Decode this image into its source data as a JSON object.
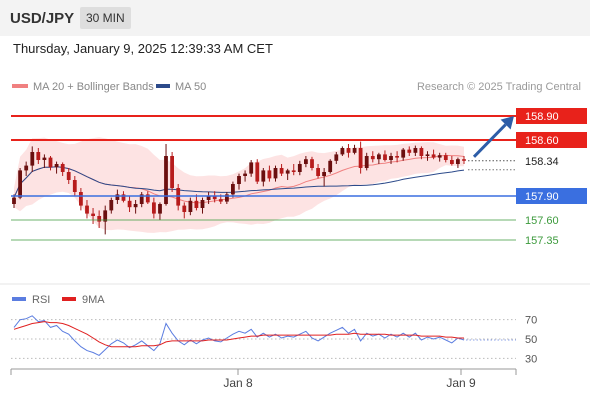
{
  "header": {
    "pair": "USD/JPY",
    "timeframe": "30 MIN"
  },
  "datetime": "Thursday, January 9, 2025 12:39:33 AM CET",
  "legend": {
    "ma20": "MA 20 + Bollinger Bands",
    "ma50": "MA 50",
    "credit": "Research © 2025 Trading Central",
    "rsi": "RSI",
    "ma9": "9MA"
  },
  "colors": {
    "ma20": "#f08080",
    "band": "#fde3e3",
    "ma50": "#2c4a8a",
    "resistance": "#e8221b",
    "support": "#3a6fe0",
    "target": "#3c9a3c",
    "bull": "#6b0f0f",
    "bear": "#b71c1c",
    "arrow": "#2d5da8"
  },
  "chart_data": [
    {
      "type": "candlestick",
      "ylim": [
        156.8,
        159.15
      ],
      "x_ticks": [
        "Jan 8",
        "Jan 9"
      ],
      "current_price": 158.34,
      "levels": [
        {
          "value": 158.9,
          "label": "158.90",
          "kind": "resistance"
        },
        {
          "value": 158.6,
          "label": "158.60",
          "kind": "resistance"
        },
        {
          "value": 158.34,
          "label": "158.34",
          "kind": "current"
        },
        {
          "value": 157.9,
          "label": "157.90",
          "kind": "pivot"
        },
        {
          "value": 157.6,
          "label": "157.60",
          "kind": "support"
        },
        {
          "value": 157.35,
          "label": "157.35",
          "kind": "support"
        }
      ],
      "forecast_arrow": {
        "from": 158.34,
        "to": 158.9
      },
      "candles": [
        [
          157.8,
          157.92,
          157.75,
          157.88
        ],
        [
          157.88,
          158.25,
          157.86,
          158.22
        ],
        [
          158.22,
          158.33,
          158.15,
          158.28
        ],
        [
          158.28,
          158.52,
          158.2,
          158.45
        ],
        [
          158.45,
          158.5,
          158.3,
          158.35
        ],
        [
          158.35,
          158.42,
          158.25,
          158.38
        ],
        [
          158.38,
          158.4,
          158.22,
          158.26
        ],
        [
          158.26,
          158.33,
          158.18,
          158.3
        ],
        [
          158.3,
          158.32,
          158.15,
          158.2
        ],
        [
          158.2,
          158.25,
          158.05,
          158.1
        ],
        [
          158.1,
          158.15,
          157.9,
          157.95
        ],
        [
          157.95,
          158.0,
          157.72,
          157.78
        ],
        [
          157.78,
          157.85,
          157.62,
          157.68
        ],
        [
          157.68,
          157.75,
          157.55,
          157.65
        ],
        [
          157.65,
          157.72,
          157.5,
          157.58
        ],
        [
          157.58,
          157.78,
          157.42,
          157.72
        ],
        [
          157.72,
          157.88,
          157.68,
          157.85
        ],
        [
          157.85,
          157.98,
          157.8,
          157.92
        ],
        [
          157.92,
          157.96,
          157.82,
          157.84
        ],
        [
          157.84,
          157.9,
          157.7,
          157.76
        ],
        [
          157.76,
          157.85,
          157.68,
          157.8
        ],
        [
          157.8,
          157.95,
          157.76,
          157.92
        ],
        [
          157.92,
          157.96,
          157.8,
          157.82
        ],
        [
          157.82,
          157.88,
          157.62,
          157.68
        ],
        [
          157.68,
          157.82,
          157.6,
          157.8
        ],
        [
          157.8,
          158.55,
          157.78,
          158.4
        ],
        [
          158.4,
          158.45,
          157.95,
          158.0
        ],
        [
          158.0,
          158.05,
          157.72,
          157.78
        ],
        [
          157.78,
          157.82,
          157.62,
          157.7
        ],
        [
          157.7,
          157.88,
          157.66,
          157.84
        ],
        [
          157.84,
          157.92,
          157.72,
          157.75
        ],
        [
          157.75,
          157.88,
          157.68,
          157.85
        ],
        [
          157.85,
          157.95,
          157.8,
          157.9
        ],
        [
          157.9,
          157.96,
          157.82,
          157.86
        ],
        [
          157.86,
          157.92,
          157.8,
          157.83
        ],
        [
          157.83,
          157.95,
          157.8,
          157.92
        ],
        [
          157.92,
          158.08,
          157.88,
          158.05
        ],
        [
          158.05,
          158.18,
          157.98,
          158.15
        ],
        [
          158.15,
          158.22,
          158.08,
          158.18
        ],
        [
          158.18,
          158.35,
          158.14,
          158.32
        ],
        [
          158.32,
          158.36,
          158.05,
          158.08
        ],
        [
          158.08,
          158.25,
          158.02,
          158.22
        ],
        [
          158.22,
          158.28,
          158.08,
          158.12
        ],
        [
          158.12,
          158.28,
          158.08,
          158.25
        ],
        [
          158.25,
          158.3,
          158.15,
          158.18
        ],
        [
          158.18,
          158.24,
          158.1,
          158.22
        ],
        [
          158.22,
          158.3,
          158.16,
          158.2
        ],
        [
          158.2,
          158.34,
          158.16,
          158.3
        ],
        [
          158.3,
          158.4,
          158.26,
          158.36
        ],
        [
          158.36,
          158.39,
          158.22,
          158.25
        ],
        [
          158.25,
          158.3,
          158.12,
          158.15
        ],
        [
          158.15,
          158.25,
          158.02,
          158.2
        ],
        [
          158.2,
          158.36,
          158.18,
          158.34
        ],
        [
          158.34,
          158.45,
          158.3,
          158.42
        ],
        [
          158.42,
          158.52,
          158.4,
          158.5
        ],
        [
          158.5,
          158.55,
          158.38,
          158.44
        ],
        [
          158.44,
          158.54,
          158.42,
          158.5
        ],
        [
          158.5,
          158.58,
          158.18,
          158.25
        ],
        [
          158.25,
          158.44,
          158.22,
          158.4
        ],
        [
          158.4,
          158.46,
          158.32,
          158.36
        ],
        [
          158.36,
          158.44,
          158.3,
          158.42
        ],
        [
          158.42,
          158.47,
          158.33,
          158.35
        ],
        [
          158.35,
          158.44,
          158.3,
          158.4
        ],
        [
          158.4,
          158.46,
          158.32,
          158.38
        ],
        [
          158.38,
          158.5,
          158.34,
          158.48
        ],
        [
          158.48,
          158.52,
          158.4,
          158.44
        ],
        [
          158.44,
          158.53,
          158.4,
          158.5
        ],
        [
          158.5,
          158.52,
          158.36,
          158.4
        ],
        [
          158.4,
          158.46,
          158.34,
          158.42
        ],
        [
          158.42,
          158.48,
          158.36,
          158.38
        ],
        [
          158.38,
          158.44,
          158.33,
          158.41
        ],
        [
          158.41,
          158.44,
          158.32,
          158.35
        ],
        [
          158.35,
          158.4,
          158.28,
          158.3
        ],
        [
          158.3,
          158.38,
          158.25,
          158.36
        ],
        [
          158.36,
          158.4,
          158.3,
          158.34
        ]
      ]
    },
    {
      "type": "line",
      "title": "RSI",
      "y_ticks": [
        70,
        50,
        30
      ],
      "ylim": [
        20,
        80
      ],
      "series": [
        {
          "name": "RSI",
          "color": "#5b7de0",
          "values": [
            62,
            70,
            71,
            74,
            68,
            69,
            62,
            64,
            58,
            55,
            48,
            42,
            38,
            36,
            33,
            39,
            45,
            49,
            46,
            41,
            44,
            48,
            43,
            38,
            45,
            66,
            56,
            48,
            44,
            49,
            45,
            49,
            51,
            48,
            47,
            51,
            55,
            58,
            56,
            60,
            52,
            56,
            52,
            55,
            51,
            53,
            52,
            55,
            58,
            51,
            48,
            52,
            56,
            59,
            62,
            56,
            60,
            48,
            56,
            53,
            55,
            51,
            55,
            52,
            56,
            52,
            56,
            49,
            52,
            50,
            52,
            49,
            46,
            51,
            49
          ]
        },
        {
          "name": "9MA",
          "color": "#e02020",
          "values": [
            60,
            62,
            64,
            66,
            67,
            68,
            67,
            67,
            66,
            64,
            61,
            58,
            55,
            51,
            47,
            44,
            42,
            42,
            42,
            42,
            42,
            43,
            43,
            43,
            44,
            47,
            48,
            48,
            48,
            48,
            48,
            48,
            49,
            49,
            49,
            49,
            50,
            51,
            52,
            53,
            53,
            54,
            54,
            54,
            54,
            54,
            54,
            54,
            54,
            54,
            54,
            54,
            54,
            55,
            55,
            55,
            56,
            55,
            55,
            55,
            55,
            55,
            54,
            54,
            54,
            54,
            54,
            53,
            53,
            53,
            53,
            52,
            52,
            51,
            51
          ]
        }
      ]
    }
  ]
}
